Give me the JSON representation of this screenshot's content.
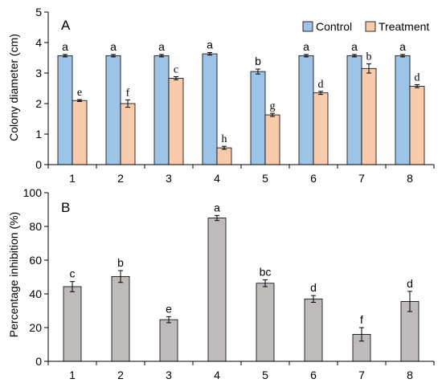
{
  "chart_data": [
    {
      "type": "bar",
      "panel_label": "A",
      "ylabel": "Colony diameter (cm)",
      "xlabel": "",
      "categories": [
        "1",
        "2",
        "3",
        "4",
        "5",
        "6",
        "7",
        "8"
      ],
      "ylim": [
        0,
        5
      ],
      "yticks": [
        "0",
        "1",
        "2",
        "3",
        "4",
        "5"
      ],
      "legend_position": "top-right",
      "series": [
        {
          "name": "Control",
          "color": "#9DC3E6",
          "values": [
            3.57,
            3.57,
            3.57,
            3.63,
            3.05,
            3.57,
            3.57,
            3.57
          ],
          "errors": [
            0.04,
            0.04,
            0.04,
            0.04,
            0.08,
            0.04,
            0.04,
            0.04
          ],
          "letters": [
            "a",
            "a",
            "a",
            "a",
            "b",
            "a",
            "a",
            "a"
          ]
        },
        {
          "name": "Treatment",
          "color": "#F8CBAD",
          "values": [
            2.1,
            2.0,
            2.83,
            0.55,
            1.63,
            2.35,
            3.15,
            2.57
          ],
          "errors": [
            0.03,
            0.12,
            0.05,
            0.05,
            0.05,
            0.05,
            0.15,
            0.05
          ],
          "letters": [
            "e",
            "f",
            "c",
            "h",
            "g",
            "d",
            "b",
            "d"
          ]
        }
      ]
    },
    {
      "type": "bar",
      "panel_label": "B",
      "ylabel": "Percentage inhibition (%)",
      "xlabel": "",
      "categories": [
        "1",
        "2",
        "3",
        "4",
        "5",
        "6",
        "7",
        "8"
      ],
      "ylim": [
        0,
        100
      ],
      "yticks": [
        "0",
        "20",
        "40",
        "60",
        "80",
        "100"
      ],
      "series": [
        {
          "color": "#BFBBBA",
          "values": [
            44.3,
            50.3,
            24.7,
            85.0,
            46.3,
            37.0,
            16.0,
            35.5
          ],
          "errors": [
            3.0,
            3.5,
            1.8,
            1.5,
            2.0,
            2.0,
            4.0,
            6.0
          ],
          "letters": [
            "c",
            "b",
            "e",
            "a",
            "bc",
            "d",
            "f",
            "d"
          ]
        }
      ]
    }
  ]
}
